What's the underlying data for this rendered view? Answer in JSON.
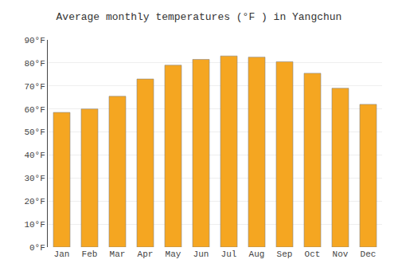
{
  "chart_data": {
    "type": "bar",
    "title": "Average monthly temperatures (°F ) in Yangchun",
    "categories": [
      "Jan",
      "Feb",
      "Mar",
      "Apr",
      "May",
      "Jun",
      "Jul",
      "Aug",
      "Sep",
      "Oct",
      "Nov",
      "Dec"
    ],
    "values": [
      58.5,
      60.0,
      65.5,
      73.0,
      79.0,
      81.5,
      83.0,
      82.5,
      80.5,
      75.5,
      69.0,
      62.0
    ],
    "color": "#F5A621",
    "ylim": [
      0,
      90
    ],
    "yticks": [
      {
        "value": 0,
        "label": "0°F"
      },
      {
        "value": 10,
        "label": "10°F"
      },
      {
        "value": 20,
        "label": "20°F"
      },
      {
        "value": 30,
        "label": "30°F"
      },
      {
        "value": 40,
        "label": "40°F"
      },
      {
        "value": 50,
        "label": "50°F"
      },
      {
        "value": 60,
        "label": "60°F"
      },
      {
        "value": 70,
        "label": "70°F"
      },
      {
        "value": 80,
        "label": "80°F"
      },
      {
        "value": 90,
        "label": "90°F"
      }
    ],
    "grid": true
  }
}
